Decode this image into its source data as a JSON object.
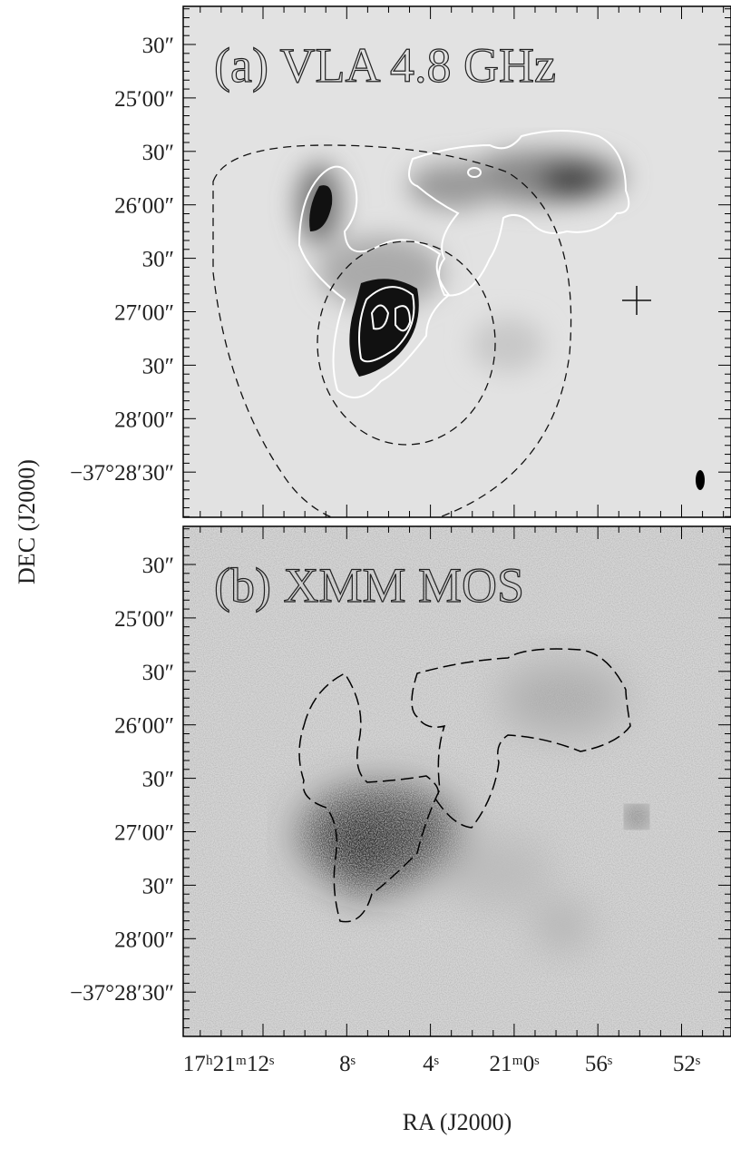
{
  "panels": [
    {
      "label": "(a) VLA 4.8 GHz"
    },
    {
      "label": "(b) XMM MOS"
    }
  ],
  "dec_ticks": [
    "30″",
    "25′00″",
    "30″",
    "26′00″",
    "30″",
    "27′00″",
    "30″",
    "28′00″",
    "−37°28′30″"
  ],
  "ra_ticks": [
    "17ʰ21ᵐ12ˢ",
    "8ˢ",
    "4ˢ",
    "21ᵐ0ˢ",
    "56ˢ",
    "52ˢ"
  ],
  "y_axis_label": "DEC (J2000)",
  "x_axis_label": "RA (J2000)"
}
